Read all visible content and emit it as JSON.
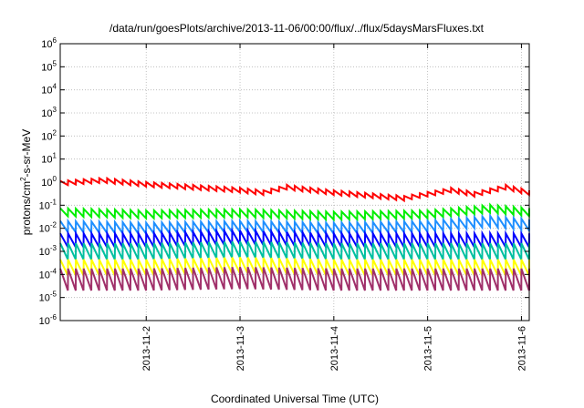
{
  "chart_data": {
    "type": "line",
    "title": "/data/run/goesPlots/archive/2013-11-06/00:00/flux/../flux/5daysMarsFluxes.txt",
    "xlabel": "Coordinated Universal Time (UTC)",
    "ylabel": {
      "base": "protons/cm",
      "sup": "2",
      "rest": "-s-sr-MeV"
    },
    "xlim": [
      "2013-11-01T02:00",
      "2013-11-06T02:00"
    ],
    "x_ticks": [
      {
        "t": "2013-11-02T00:00",
        "label": "2013-11-2"
      },
      {
        "t": "2013-11-03T00:00",
        "label": "2013-11-3"
      },
      {
        "t": "2013-11-04T00:00",
        "label": "2013-11-4"
      },
      {
        "t": "2013-11-05T00:00",
        "label": "2013-11-5"
      },
      {
        "t": "2013-11-06T00:00",
        "label": "2013-11-6"
      }
    ],
    "y_scale": "log",
    "ylim": [
      1e-06,
      1000000.0
    ],
    "y_ticks": [
      {
        "exp": "-6"
      },
      {
        "exp": "-5"
      },
      {
        "exp": "-4"
      },
      {
        "exp": "-3"
      },
      {
        "exp": "-2"
      },
      {
        "exp": "-1"
      },
      {
        "exp": "0"
      },
      {
        "exp": "1"
      },
      {
        "exp": "2"
      },
      {
        "exp": "3"
      },
      {
        "exp": "4"
      },
      {
        "exp": "5"
      },
      {
        "exp": "6"
      }
    ],
    "grid": true,
    "sawtooth_period_hours": 2,
    "series": [
      {
        "color": "#ff0000",
        "points": [
          [
            "2013-11-01T02:00",
            0.9
          ],
          [
            "2013-11-01T13:00",
            1.2
          ],
          [
            "2013-11-02T00:00",
            0.8
          ],
          [
            "2013-11-03T00:00",
            0.45
          ],
          [
            "2013-11-03T06:00",
            0.35
          ],
          [
            "2013-11-03T12:00",
            0.6
          ],
          [
            "2013-11-04T00:00",
            0.35
          ],
          [
            "2013-11-04T18:00",
            0.2
          ],
          [
            "2013-11-05T00:00",
            0.3
          ],
          [
            "2013-11-05T06:00",
            0.45
          ],
          [
            "2013-11-05T12:00",
            0.3
          ],
          [
            "2013-11-05T20:00",
            0.6
          ],
          [
            "2013-11-06T02:00",
            0.35
          ]
        ],
        "sawtooth": 1.6
      },
      {
        "color": "#00ee00",
        "points": [
          [
            "2013-11-01T02:00",
            0.05
          ],
          [
            "2013-11-02T00:00",
            0.04
          ],
          [
            "2013-11-03T00:00",
            0.045
          ],
          [
            "2013-11-04T00:00",
            0.035
          ],
          [
            "2013-11-05T00:00",
            0.04
          ],
          [
            "2013-11-05T16:00",
            0.07
          ],
          [
            "2013-11-06T02:00",
            0.05
          ]
        ],
        "sawtooth": 2.2
      },
      {
        "color": "#1e8fff",
        "points": [
          [
            "2013-11-01T02:00",
            0.012
          ],
          [
            "2013-11-02T00:00",
            0.01
          ],
          [
            "2013-11-03T00:00",
            0.012
          ],
          [
            "2013-11-04T00:00",
            0.01
          ],
          [
            "2013-11-05T00:00",
            0.012
          ],
          [
            "2013-11-05T16:00",
            0.02
          ],
          [
            "2013-11-06T02:00",
            0.014
          ]
        ],
        "sawtooth": 3
      },
      {
        "color": "#0000ff",
        "points": [
          [
            "2013-11-01T02:00",
            0.003
          ],
          [
            "2013-11-02T00:00",
            0.003
          ],
          [
            "2013-11-03T00:00",
            0.004
          ],
          [
            "2013-11-04T00:00",
            0.003
          ],
          [
            "2013-11-05T00:00",
            0.003
          ],
          [
            "2013-11-06T02:00",
            0.003
          ]
        ],
        "sawtooth": 4
      },
      {
        "color": "#00bfa0",
        "points": [
          [
            "2013-11-01T02:00",
            0.001
          ],
          [
            "2013-11-02T00:00",
            0.001
          ],
          [
            "2013-11-03T00:00",
            0.0012
          ],
          [
            "2013-11-04T00:00",
            0.001
          ],
          [
            "2013-11-05T00:00",
            0.001
          ],
          [
            "2013-11-06T02:00",
            0.001
          ]
        ],
        "sawtooth": 5
      },
      {
        "color": "#ffff00",
        "points": [
          [
            "2013-11-01T02:00",
            0.0002
          ],
          [
            "2013-11-02T00:00",
            0.0002
          ],
          [
            "2013-11-03T00:00",
            0.00025
          ],
          [
            "2013-11-04T00:00",
            0.0002
          ],
          [
            "2013-11-05T00:00",
            0.0002
          ],
          [
            "2013-11-06T02:00",
            0.0002
          ]
        ],
        "sawtooth": 5
      },
      {
        "color": "#a0306a",
        "points": [
          [
            "2013-11-01T02:00",
            6e-05
          ],
          [
            "2013-11-02T00:00",
            6e-05
          ],
          [
            "2013-11-03T00:00",
            7e-05
          ],
          [
            "2013-11-04T00:00",
            6e-05
          ],
          [
            "2013-11-05T00:00",
            6e-05
          ],
          [
            "2013-11-06T02:00",
            6e-05
          ]
        ],
        "sawtooth": 9
      }
    ]
  }
}
